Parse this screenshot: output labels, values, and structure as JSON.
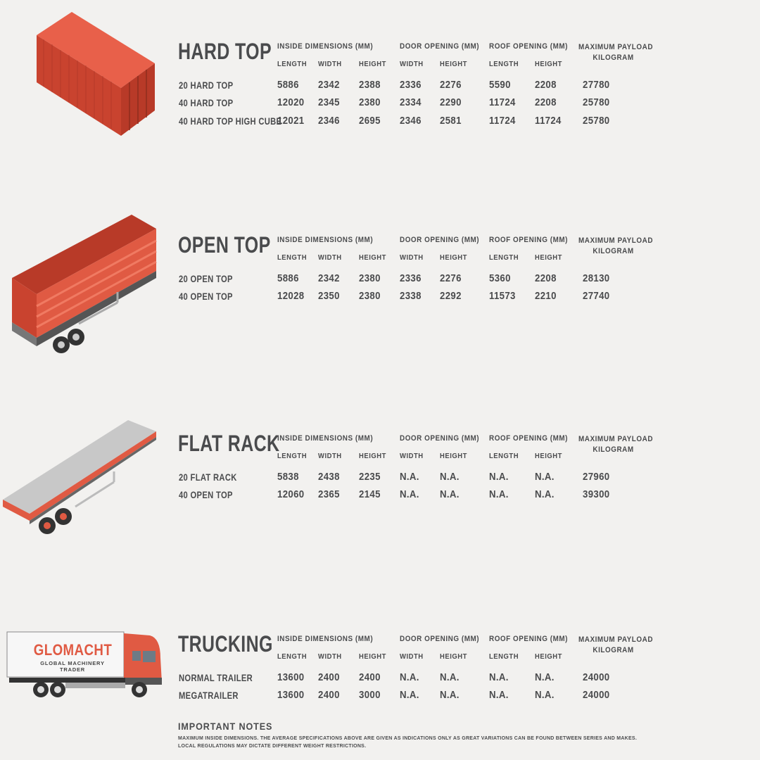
{
  "column_groups": {
    "inside": "INSIDE DIMENSIONS (MM)",
    "door": "DOOR OPENING (MM)",
    "roof": "ROOF OPENING (MM)",
    "payload_line1": "MAXIMUM PAYLOAD",
    "payload_line2": "KILOGRAM"
  },
  "sub_columns": [
    "LENGTH",
    "WIDTH",
    "HEIGHT",
    "WIDTH",
    "HEIGHT",
    "LENGTH",
    "HEIGHT"
  ],
  "sections": [
    {
      "title": "HARD TOP",
      "illustration": "shipping-container",
      "rows": [
        {
          "name": "20 HARD TOP",
          "values": [
            "5886",
            "2342",
            "2388",
            "2336",
            "2276",
            "5590",
            "2208",
            "27780"
          ]
        },
        {
          "name": "40 HARD TOP",
          "values": [
            "12020",
            "2345",
            "2380",
            "2334",
            "2290",
            "11724",
            "2208",
            "25780"
          ]
        },
        {
          "name": "40 HARD TOP HIGH CUBE",
          "values": [
            "12021",
            "2346",
            "2695",
            "2346",
            "2581",
            "11724",
            "11724",
            "25780"
          ]
        }
      ]
    },
    {
      "title": "OPEN TOP",
      "illustration": "open-top-trailer",
      "rows": [
        {
          "name": "20 OPEN TOP",
          "values": [
            "5886",
            "2342",
            "2380",
            "2336",
            "2276",
            "5360",
            "2208",
            "28130"
          ]
        },
        {
          "name": "40 OPEN TOP",
          "values": [
            "12028",
            "2350",
            "2380",
            "2338",
            "2292",
            "11573",
            "2210",
            "27740"
          ]
        }
      ]
    },
    {
      "title": "FLAT RACK",
      "illustration": "flat-rack-trailer",
      "rows": [
        {
          "name": "20 FLAT RACK",
          "values": [
            "5838",
            "2438",
            "2235",
            "N.A.",
            "N.A.",
            "N.A.",
            "N.A.",
            "27960"
          ]
        },
        {
          "name": "40 OPEN TOP",
          "values": [
            "12060",
            "2365",
            "2145",
            "N.A.",
            "N.A.",
            "N.A.",
            "N.A.",
            "39300"
          ]
        }
      ]
    },
    {
      "title": "TRUCKING",
      "illustration": "truck",
      "rows": [
        {
          "name": "NORMAL TRAILER",
          "values": [
            "13600",
            "2400",
            "2400",
            "N.A.",
            "N.A.",
            "N.A.",
            "N.A.",
            "24000"
          ]
        },
        {
          "name": "MEGATRAILER",
          "values": [
            "13600",
            "2400",
            "3000",
            "N.A.",
            "N.A.",
            "N.A.",
            "N.A.",
            "24000"
          ]
        }
      ]
    }
  ],
  "truck_logo": {
    "brand": "GLOMACHT",
    "tagline": "GLOBAL MACHINERY TRADER"
  },
  "notes": {
    "title": "IMPORTANT NOTES",
    "line1": "MAXIMUM INSIDE DIMENSIONS. THE AVERAGE SPECIFICATIONS ABOVE ARE GIVEN AS INDICATIONS ONLY AS GREAT VARIATIONS CAN BE FOUND BETWEEN SERIES AND MAKES.",
    "line2": "LOCAL REGULATIONS MAY DICTATE DIFFERENT WEIGHT RESTRICTIONS."
  },
  "colors": {
    "accent": "#e05a43",
    "text": "#4a4b4d",
    "background": "#f2f1ef"
  }
}
